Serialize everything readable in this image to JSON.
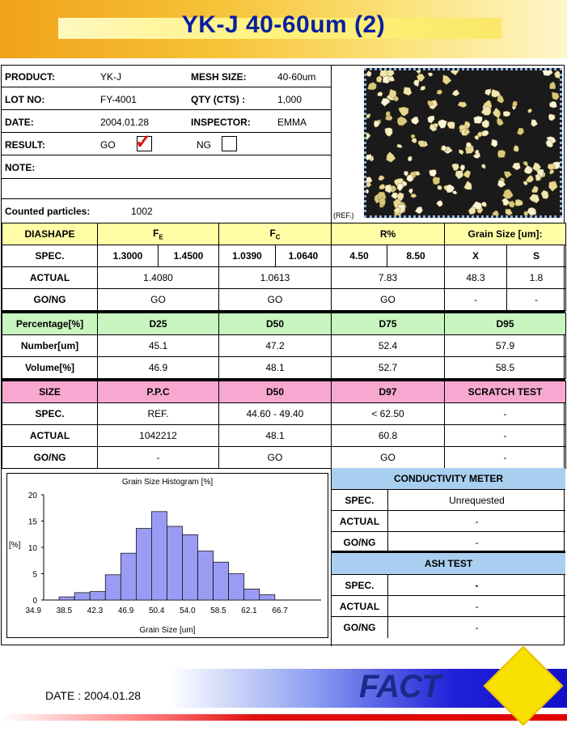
{
  "title": "YK-J 40-60um (2)",
  "info": {
    "product_label": "PRODUCT:",
    "product": "YK-J",
    "mesh_label": "MESH SIZE:",
    "mesh": "40-60um",
    "lot_label": "LOT NO:",
    "lot": "FY-4001",
    "qty_label": "QTY (CTS) :",
    "qty": "1,000",
    "date_label": "DATE:",
    "date": "2004.01.28",
    "inspector_label": "INSPECTOR:",
    "inspector": "EMMA",
    "result_label": "RESULT:",
    "go_label": "GO",
    "ng_label": "NG",
    "result_checked": "GO",
    "note_label": "NOTE:",
    "counted_label": "Counted particles:",
    "counted": "1002",
    "ref_label": "(REF.)"
  },
  "diashape": {
    "h": [
      "DIASHAPE",
      "F",
      "F",
      "R%",
      "Grain Size [um]:"
    ],
    "sub": [
      "",
      "E",
      "C",
      "",
      ""
    ],
    "spec_label": "SPEC.",
    "spec": [
      "1.3000",
      "1.4500",
      "1.0390",
      "1.0640",
      "4.50",
      "8.50",
      "X",
      "S"
    ],
    "actual_label": "ACTUAL",
    "actual": [
      "1.4080",
      "1.0613",
      "7.83",
      "48.3",
      "1.8"
    ],
    "gong_label": "GO/NG",
    "gong": [
      "GO",
      "GO",
      "GO",
      "-",
      "-"
    ]
  },
  "percent": {
    "h": [
      "Percentage[%]",
      "D25",
      "D50",
      "D75",
      "D95"
    ],
    "number_label": "Number[um]",
    "number": [
      "45.1",
      "47.2",
      "52.4",
      "57.9"
    ],
    "volume_label": "Volume[%]",
    "volume": [
      "46.9",
      "48.1",
      "52.7",
      "58.5"
    ]
  },
  "size": {
    "h": [
      "SIZE",
      "P.P.C",
      "D50",
      "D97",
      "SCRATCH TEST"
    ],
    "spec_label": "SPEC.",
    "spec": [
      "REF.",
      "44.60 - 49.40",
      "< 62.50",
      "-"
    ],
    "actual_label": "ACTUAL",
    "actual": [
      "1042212",
      "48.1",
      "60.8",
      "-"
    ],
    "gong_label": "GO/NG",
    "gong": [
      "-",
      "GO",
      "GO",
      "-"
    ]
  },
  "conductivity": {
    "title": "CONDUCTIVITY METER",
    "spec_label": "SPEC.",
    "spec": "Unrequested",
    "actual_label": "ACTUAL",
    "actual": "-",
    "gong_label": "GO/NG",
    "gong": "-"
  },
  "ash": {
    "title": "ASH TEST",
    "spec_label": "SPEC.",
    "spec": "-",
    "actual_label": "ACTUAL",
    "actual": "-",
    "gong_label": "GO/NG",
    "gong": "-"
  },
  "chart_data": {
    "type": "bar",
    "title": "Grain Size Histogram [%]",
    "xlabel": "Grain Size [um]",
    "ylabel": "[%]",
    "ylim": [
      0,
      20
    ],
    "yticks": [
      0,
      5,
      10,
      15,
      20
    ],
    "xticks": [
      "34.9",
      "38.5",
      "42.3",
      "46.9",
      "50.4",
      "54.0",
      "58.5",
      "62.1",
      "66.7"
    ],
    "values": [
      0,
      0.6,
      1.4,
      1.6,
      4.8,
      8.9,
      13.6,
      16.8,
      14.0,
      12.4,
      9.3,
      7.2,
      5.0,
      2.1,
      1.0,
      0,
      0,
      0
    ],
    "bar_color": "#9a9cf4"
  },
  "footer": {
    "date": "DATE : 2004.01.28",
    "logo": "FACT"
  }
}
